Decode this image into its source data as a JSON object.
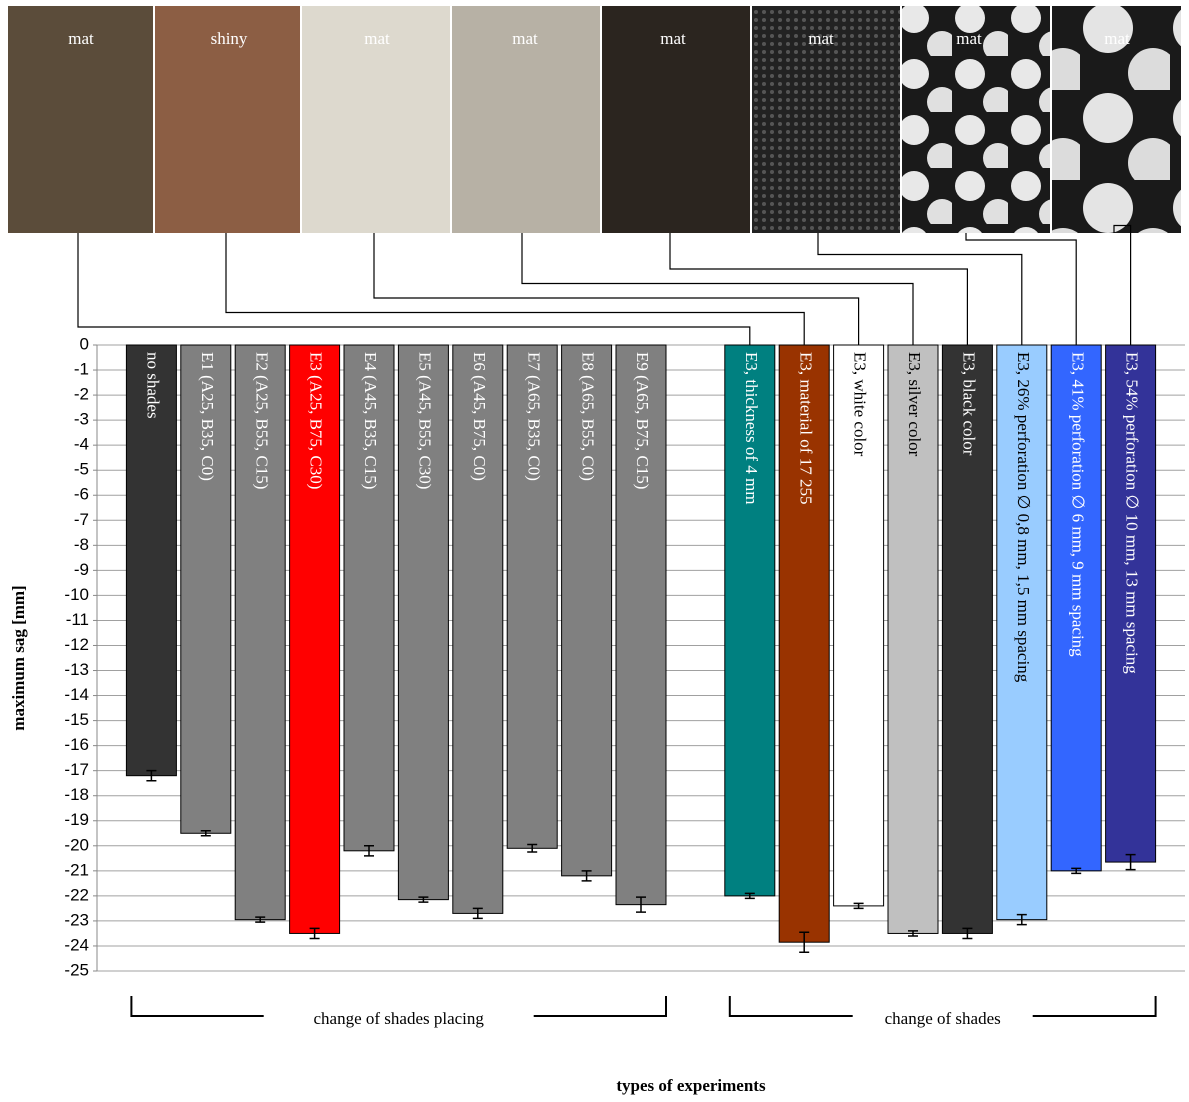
{
  "photos": [
    "mat",
    "shiny",
    "mat",
    "mat",
    "mat",
    "mat",
    "mat",
    "mat"
  ],
  "chart_data": {
    "type": "bar",
    "categories": [
      "no shades",
      "E1 (A25, B35, C0)",
      "E2 (A25, B55, C15)",
      "E3 (A25, B75, C30)",
      "E4 (A45, B35, C15)",
      "E5 (A45, B55, C30)",
      "E6 (A45, B75, C0)",
      "E7 (A65, B35, C0)",
      "E8 (A65, B55, C0)",
      "E9 (A65, B75, C15)",
      null,
      "E3, thickness of 4 mm",
      "E3, material of 17 255",
      "E3, white color",
      "E3, silver color",
      "E3, black color",
      "E3, 26% perforation ∅ 0,8 mm, 1,5 mm spacing",
      "E3, 41% perforation ∅ 6 mm, 9 mm spacing",
      "E3, 54% perforation ∅ 10 mm, 13 mm spacing"
    ],
    "values": [
      -17.2,
      -19.5,
      -22.95,
      -23.5,
      -20.2,
      -22.15,
      -22.7,
      -20.1,
      -21.2,
      -22.35,
      null,
      -22.0,
      -23.85,
      -22.4,
      -23.5,
      -23.5,
      -22.95,
      -21.0,
      -20.65
    ],
    "errors": [
      0.2,
      0.1,
      0.1,
      0.2,
      0.2,
      0.1,
      0.2,
      0.15,
      0.2,
      0.3,
      null,
      0.1,
      0.4,
      0.1,
      0.1,
      0.2,
      0.2,
      0.1,
      0.3
    ],
    "colors": [
      "#333333",
      "#808080",
      "#808080",
      "#ff0000",
      "#808080",
      "#808080",
      "#808080",
      "#808080",
      "#808080",
      "#808080",
      null,
      "#008080",
      "#993300",
      "#ffffff",
      "#c0c0c0",
      "#333333",
      "#99ccff",
      "#3366ff",
      "#333399"
    ],
    "ylabel": "maximum sag [mm]",
    "xlabel": "types of experiments",
    "groups": [
      "change of shades placing",
      "change of shades"
    ],
    "ylim": [
      -25,
      0
    ],
    "yticks": [
      0,
      -1,
      -2,
      -3,
      -4,
      -5,
      -6,
      -7,
      -8,
      -9,
      -10,
      -11,
      -12,
      -13,
      -14,
      -15,
      -16,
      -17,
      -18,
      -19,
      -20,
      -21,
      -22,
      -23,
      -24,
      -25
    ],
    "grid": true
  }
}
